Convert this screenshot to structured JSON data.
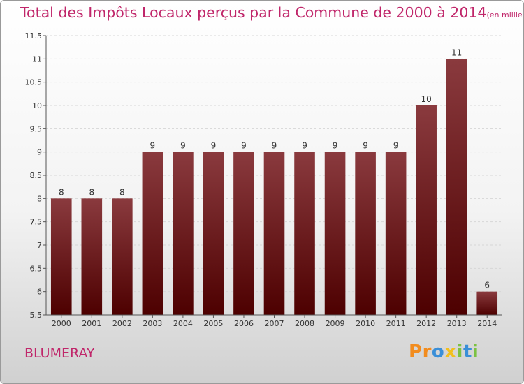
{
  "title": "Total des Impôts Locaux perçus par la Commune de 2000 à 2014",
  "unit_note": "(en milliers d'€)",
  "commune": "BLUMERAY",
  "brand": {
    "letters": [
      "P",
      "r",
      "o",
      "x",
      "i",
      "t",
      "i"
    ],
    "colors": [
      "#f28c1e",
      "#f28c1e",
      "#3a8fd8",
      "#f2c01e",
      "#7cc242",
      "#3a8fd8",
      "#7cc242"
    ]
  },
  "colors": {
    "bar_top": "#8a3a3e",
    "bar_bottom": "#4d0000",
    "accent": "#c0266a"
  },
  "chart_data": {
    "type": "bar",
    "categories": [
      "2000",
      "2001",
      "2002",
      "2003",
      "2004",
      "2005",
      "2006",
      "2007",
      "2008",
      "2009",
      "2010",
      "2011",
      "2012",
      "2013",
      "2014"
    ],
    "values": [
      8,
      8,
      8,
      9,
      9,
      9,
      9,
      9,
      9,
      9,
      9,
      9,
      10,
      11,
      6
    ],
    "value_labels": [
      "8",
      "8",
      "8",
      "9",
      "9",
      "9",
      "9",
      "9",
      "9",
      "9",
      "9",
      "9",
      "10",
      "11",
      "6"
    ],
    "yticks": [
      "5.5",
      "6",
      "6.5",
      "7",
      "7.5",
      "8",
      "8.5",
      "9",
      "9.5",
      "10",
      "10.5",
      "11",
      "11.5"
    ],
    "ylim": [
      5.5,
      11.5
    ],
    "title": "Total des Impôts Locaux perçus par la Commune de 2000 à 2014",
    "xlabel": "",
    "ylabel": ""
  }
}
